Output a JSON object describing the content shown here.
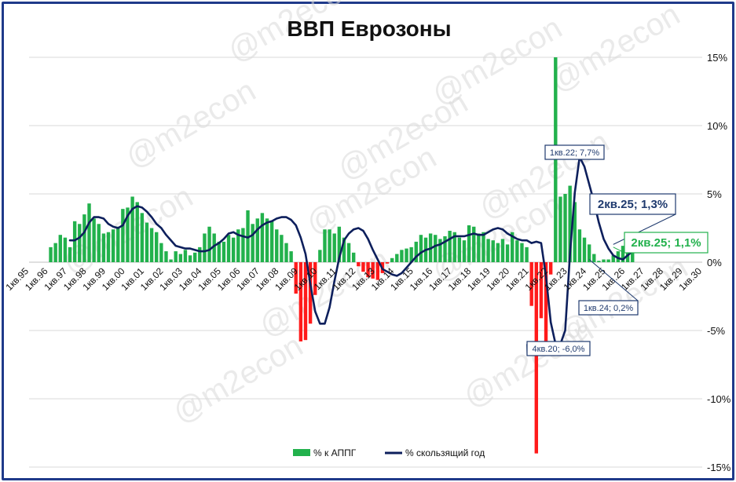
{
  "chart_data": {
    "type": "bar+line",
    "title": "ВВП Еврозоны",
    "y_axis": {
      "min": -15,
      "max": 15,
      "step": 5,
      "side": "right",
      "tick_labels": [
        "15%",
        "10%",
        "5%",
        "0%",
        "-5%",
        "-10%",
        "-15%"
      ]
    },
    "x_axis": {
      "tick_labels": [
        "1кв.95",
        "1кв.96",
        "1кв.97",
        "1кв.98",
        "1кв.99",
        "1кв.00",
        "1кв.01",
        "1кв.02",
        "1кв.03",
        "1кв.04",
        "1кв.05",
        "1кв.06",
        "1кв.07",
        "1кв.08",
        "1кв.09",
        "1кв.10",
        "1кв.11",
        "1кв.12",
        "1кв.13",
        "1кв.14",
        "1кв.15",
        "1кв.16",
        "1кв.17",
        "1кв.18",
        "1кв.19",
        "1кв.20",
        "1кв.21",
        "1кв.22",
        "1кв.23",
        "1кв.24",
        "1кв.25",
        "1кв.26",
        "1кв.27",
        "1кв.28",
        "1кв.29",
        "1кв.30"
      ],
      "start_year": 1995,
      "end_year": 2030
    },
    "grid": true,
    "legend": {
      "position": "bottom",
      "entries": [
        {
          "name": "% к АППГ",
          "color": "#22b14c",
          "kind": "bar"
        },
        {
          "name": "% скользящий год",
          "color": "#0d1f5c",
          "kind": "line"
        }
      ]
    },
    "colors": {
      "positive": "#22b14c",
      "negative": "#ff1a1a",
      "line": "#0d1f5c",
      "grid": "#d9d9d9",
      "frame": "#1f3a8a"
    },
    "series": [
      {
        "name": "% к АППГ",
        "first_period": "1кв.96",
        "values": [
          1.1,
          1.4,
          2.0,
          1.8,
          1.1,
          3.0,
          2.8,
          3.5,
          4.3,
          3.2,
          2.8,
          2.1,
          2.2,
          2.4,
          2.6,
          3.9,
          4.0,
          4.8,
          4.4,
          3.6,
          2.9,
          2.5,
          2.2,
          1.4,
          0.8,
          0.2,
          0.8,
          0.6,
          0.9,
          0.5,
          0.7,
          1.1,
          2.1,
          2.6,
          2.1,
          1.5,
          1.5,
          2.0,
          1.8,
          2.4,
          2.5,
          3.8,
          2.8,
          3.2,
          3.6,
          3.2,
          3.0,
          2.4,
          2.0,
          1.4,
          0.8,
          -2.3,
          -5.8,
          -5.7,
          -4.5,
          -2.4,
          0.9,
          2.4,
          2.4,
          2.1,
          2.6,
          1.8,
          1.4,
          0.7,
          -0.3,
          -0.7,
          -1.1,
          -1.2,
          -1.3,
          -0.8,
          -0.1,
          0.3,
          0.6,
          0.9,
          1.0,
          1.1,
          1.5,
          2.0,
          1.8,
          2.1,
          2.0,
          1.7,
          1.9,
          2.3,
          2.2,
          1.8,
          1.6,
          2.7,
          2.6,
          2.1,
          2.2,
          1.7,
          1.6,
          1.4,
          1.7,
          1.3,
          2.2,
          1.6,
          1.4,
          1.1,
          -3.2,
          -14.0,
          -4.1,
          -6.0,
          -0.9,
          15.0,
          4.8,
          5.0,
          5.6,
          4.4,
          2.4,
          1.8,
          1.3,
          0.6,
          0.1,
          0.2,
          0.2,
          0.5,
          0.8,
          1.2,
          1.2,
          1.1
        ]
      },
      {
        "name": "% скользящий год",
        "first_period": "1кв.97",
        "values": [
          1.6,
          1.6,
          1.8,
          2.2,
          2.9,
          3.3,
          3.3,
          3.2,
          2.8,
          2.6,
          2.5,
          2.7,
          3.4,
          3.9,
          4.1,
          4.0,
          3.7,
          3.3,
          2.8,
          2.5,
          2.0,
          1.6,
          1.2,
          1.1,
          1.0,
          1.0,
          0.9,
          0.8,
          0.8,
          0.9,
          1.2,
          1.4,
          1.7,
          2.1,
          2.2,
          2.0,
          1.9,
          1.8,
          2.0,
          2.4,
          2.7,
          2.9,
          3.0,
          3.2,
          3.3,
          3.3,
          3.1,
          2.7,
          1.8,
          0.6,
          -1.6,
          -3.6,
          -4.5,
          -4.5,
          -3.3,
          -1.4,
          0.3,
          1.6,
          2.1,
          2.4,
          2.5,
          2.3,
          1.7,
          0.9,
          0.2,
          -0.5,
          -0.7,
          -0.9,
          -1.0,
          -0.8,
          -0.4,
          0.0,
          0.4,
          0.7,
          0.9,
          1.0,
          1.2,
          1.3,
          1.5,
          1.7,
          1.9,
          1.9,
          1.9,
          2.0,
          2.1,
          2.0,
          2.0,
          2.2,
          2.4,
          2.5,
          2.4,
          2.1,
          1.9,
          1.7,
          1.6,
          1.6,
          1.4,
          1.5,
          1.4,
          -1.0,
          -4.4,
          -6.0,
          -6.0,
          -5.0,
          0.6,
          5.1,
          7.7,
          7.0,
          5.7,
          4.4,
          2.9,
          1.7,
          1.0,
          0.5,
          0.3,
          0.2,
          0.5,
          0.8,
          1.0,
          1.1,
          1.3
        ]
      }
    ],
    "annotations": [
      {
        "text": "1кв.22; 7,7%",
        "period": 108,
        "value": 7.7,
        "style": "small"
      },
      {
        "text": "2кв.25; 1,3%",
        "period": 121,
        "value": 1.3,
        "style": "big-navy"
      },
      {
        "text": "2кв.25; 1,1%",
        "period": 121,
        "value": 1.1,
        "style": "big-green"
      },
      {
        "text": "1кв.24; 0,2%",
        "period": 116,
        "value": 0.2,
        "style": "small"
      },
      {
        "text": "4кв.20; -6,0%",
        "period": 103,
        "value": -6.0,
        "style": "small"
      }
    ],
    "watermark": "@m2econ"
  }
}
